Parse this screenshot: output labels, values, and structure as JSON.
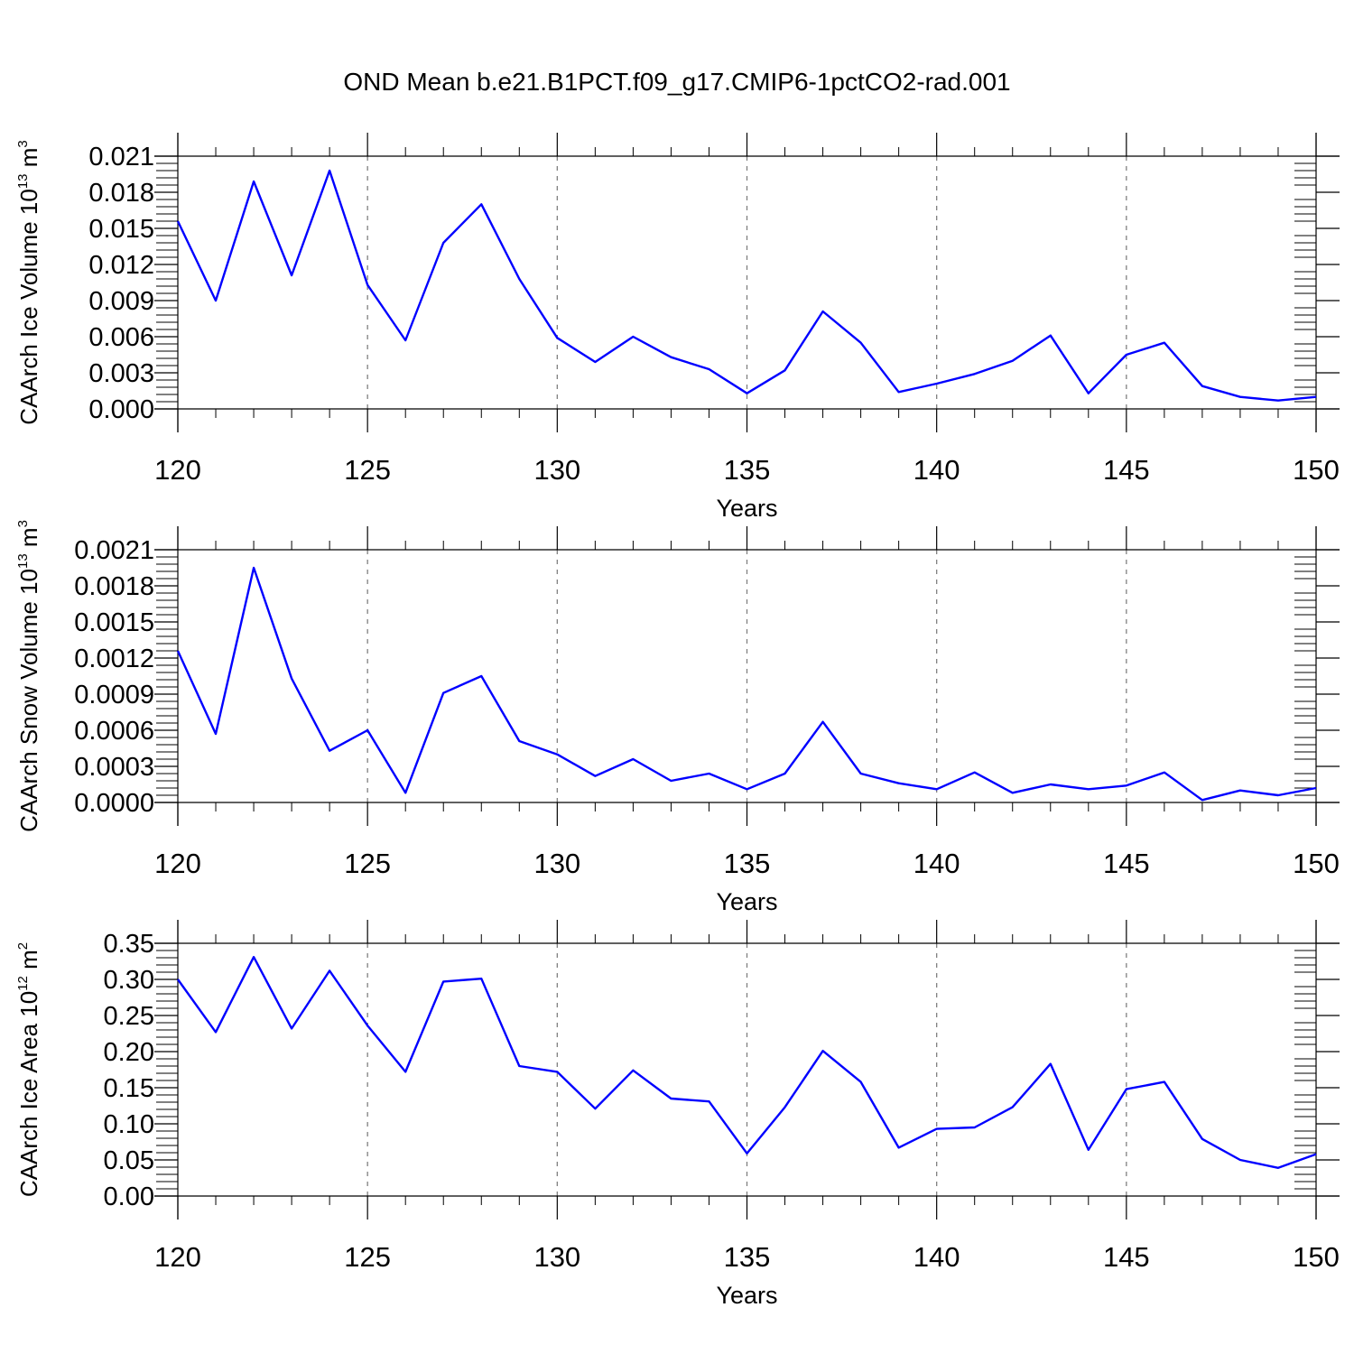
{
  "title": "OND Mean b.e21.B1PCT.f09_g17.CMIP6-1pctCO2-rad.001",
  "colors": {
    "line": "#0000ff",
    "axis": "#000000",
    "grid": "#808080"
  },
  "chart_data": [
    {
      "type": "line",
      "ylabel": {
        "text": "CAArch Ice Volume 10",
        "exponent": "13",
        "unit": " m",
        "unit_exponent": "3"
      },
      "xlabel": "Years",
      "xlim": [
        120,
        150
      ],
      "ylim": [
        0,
        0.021
      ],
      "xticks": [
        "120",
        "125",
        "130",
        "135",
        "140",
        "145",
        "150"
      ],
      "yticks": [
        "0.000",
        "0.003",
        "0.006",
        "0.009",
        "0.012",
        "0.015",
        "0.018",
        "0.021"
      ],
      "x": [
        120,
        121,
        122,
        123,
        124,
        125,
        126,
        127,
        128,
        129,
        130,
        131,
        132,
        133,
        134,
        135,
        136,
        137,
        138,
        139,
        140,
        141,
        142,
        143,
        144,
        145,
        146,
        147,
        148,
        149,
        150
      ],
      "values": [
        0.0156,
        0.009,
        0.0189,
        0.0111,
        0.0198,
        0.0103,
        0.0057,
        0.0138,
        0.017,
        0.0108,
        0.0059,
        0.0039,
        0.006,
        0.0043,
        0.0033,
        0.0013,
        0.0032,
        0.0081,
        0.0055,
        0.0014,
        0.0021,
        0.0029,
        0.004,
        0.0061,
        0.0013,
        0.0045,
        0.0055,
        0.0019,
        0.001,
        0.0007,
        0.001
      ]
    },
    {
      "type": "line",
      "ylabel": {
        "text": "CAArch Snow Volume 10",
        "exponent": "13",
        "unit": " m",
        "unit_exponent": "3"
      },
      "xlabel": "Years",
      "xlim": [
        120,
        150
      ],
      "ylim": [
        0,
        0.0021
      ],
      "xticks": [
        "120",
        "125",
        "130",
        "135",
        "140",
        "145",
        "150"
      ],
      "yticks": [
        "0.0000",
        "0.0003",
        "0.0006",
        "0.0009",
        "0.0012",
        "0.0015",
        "0.0018",
        "0.0021"
      ],
      "x": [
        120,
        121,
        122,
        123,
        124,
        125,
        126,
        127,
        128,
        129,
        130,
        131,
        132,
        133,
        134,
        135,
        136,
        137,
        138,
        139,
        140,
        141,
        142,
        143,
        144,
        145,
        146,
        147,
        148,
        149,
        150
      ],
      "values": [
        0.00126,
        0.00057,
        0.00195,
        0.00103,
        0.00043,
        0.0006,
        8e-05,
        0.00091,
        0.00105,
        0.00051,
        0.0004,
        0.00022,
        0.00036,
        0.00018,
        0.00024,
        0.00011,
        0.00024,
        0.00067,
        0.00024,
        0.00016,
        0.00011,
        0.00025,
        8e-05,
        0.00015,
        0.00011,
        0.00014,
        0.00025,
        2e-05,
        0.0001,
        6e-05,
        0.00012
      ]
    },
    {
      "type": "line",
      "ylabel": {
        "text": "CAArch Ice Area 10",
        "exponent": "12",
        "unit": " m",
        "unit_exponent": "2"
      },
      "xlabel": "Years",
      "xlim": [
        120,
        150
      ],
      "ylim": [
        0,
        0.35
      ],
      "xticks": [
        "120",
        "125",
        "130",
        "135",
        "140",
        "145",
        "150"
      ],
      "yticks": [
        "0.00",
        "0.05",
        "0.10",
        "0.15",
        "0.20",
        "0.25",
        "0.30",
        "0.35"
      ],
      "x": [
        120,
        121,
        122,
        123,
        124,
        125,
        126,
        127,
        128,
        129,
        130,
        131,
        132,
        133,
        134,
        135,
        136,
        137,
        138,
        139,
        140,
        141,
        142,
        143,
        144,
        145,
        146,
        147,
        148,
        149,
        150
      ],
      "values": [
        0.3,
        0.227,
        0.331,
        0.232,
        0.312,
        0.236,
        0.172,
        0.297,
        0.301,
        0.18,
        0.172,
        0.121,
        0.174,
        0.135,
        0.131,
        0.059,
        0.123,
        0.201,
        0.158,
        0.067,
        0.093,
        0.095,
        0.123,
        0.183,
        0.064,
        0.148,
        0.158,
        0.079,
        0.05,
        0.039,
        0.058
      ]
    }
  ]
}
